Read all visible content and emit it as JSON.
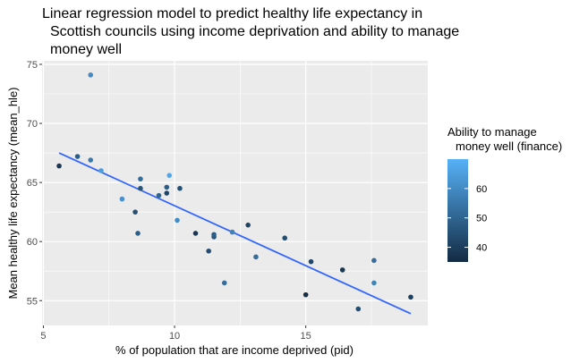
{
  "chart_data": {
    "type": "scatter",
    "title_lines": [
      "Linear regression model to predict healthy life expectancy in",
      "Scottish councils using income deprivation and ability to manage",
      "money well"
    ],
    "xlabel": "% of population that are income deprived (pid)",
    "ylabel": "Mean healthy life expectancy (mean_hle)",
    "xlim": [
      4.95,
      19.65
    ],
    "ylim": [
      52.9,
      75.3
    ],
    "xticks": [
      5,
      10,
      15
    ],
    "yticks": [
      55,
      60,
      65,
      70,
      75
    ],
    "grid": true,
    "legend": {
      "title_lines": [
        "Ability to manage",
        "money well (finance)"
      ],
      "ticks": [
        40,
        50,
        60
      ],
      "range": [
        35,
        70
      ],
      "colors": {
        "low": "#132b43",
        "high": "#56b1f7"
      },
      "placement": "right"
    },
    "regression_line": {
      "x": [
        5.6,
        19.0
      ],
      "y": [
        67.5,
        53.9
      ],
      "color": "#3366ff"
    },
    "points": [
      {
        "x": 5.6,
        "y": 66.4,
        "finance": 38
      },
      {
        "x": 6.3,
        "y": 67.2,
        "finance": 48
      },
      {
        "x": 6.8,
        "y": 74.1,
        "finance": 60
      },
      {
        "x": 6.8,
        "y": 66.9,
        "finance": 55
      },
      {
        "x": 7.2,
        "y": 66.0,
        "finance": 65
      },
      {
        "x": 8.0,
        "y": 63.6,
        "finance": 62
      },
      {
        "x": 8.5,
        "y": 62.5,
        "finance": 45
      },
      {
        "x": 8.6,
        "y": 60.7,
        "finance": 48
      },
      {
        "x": 8.7,
        "y": 64.5,
        "finance": 46
      },
      {
        "x": 8.7,
        "y": 65.3,
        "finance": 52
      },
      {
        "x": 9.4,
        "y": 63.9,
        "finance": 50
      },
      {
        "x": 9.7,
        "y": 64.1,
        "finance": 42
      },
      {
        "x": 9.7,
        "y": 64.6,
        "finance": 48
      },
      {
        "x": 9.8,
        "y": 65.6,
        "finance": 67
      },
      {
        "x": 10.1,
        "y": 61.8,
        "finance": 60
      },
      {
        "x": 10.2,
        "y": 64.5,
        "finance": 45
      },
      {
        "x": 10.8,
        "y": 60.7,
        "finance": 38
      },
      {
        "x": 11.3,
        "y": 59.2,
        "finance": 44
      },
      {
        "x": 11.5,
        "y": 60.4,
        "finance": 46
      },
      {
        "x": 11.5,
        "y": 60.6,
        "finance": 48
      },
      {
        "x": 11.9,
        "y": 56.5,
        "finance": 52
      },
      {
        "x": 12.2,
        "y": 60.8,
        "finance": 58
      },
      {
        "x": 12.8,
        "y": 61.4,
        "finance": 42
      },
      {
        "x": 13.1,
        "y": 58.7,
        "finance": 52
      },
      {
        "x": 14.2,
        "y": 60.3,
        "finance": 44
      },
      {
        "x": 15.0,
        "y": 55.5,
        "finance": 36
      },
      {
        "x": 15.2,
        "y": 58.3,
        "finance": 42
      },
      {
        "x": 16.4,
        "y": 57.6,
        "finance": 38
      },
      {
        "x": 17.0,
        "y": 54.3,
        "finance": 44
      },
      {
        "x": 17.6,
        "y": 58.4,
        "finance": 52
      },
      {
        "x": 17.6,
        "y": 56.5,
        "finance": 58
      },
      {
        "x": 19.0,
        "y": 55.3,
        "finance": 40
      }
    ]
  }
}
